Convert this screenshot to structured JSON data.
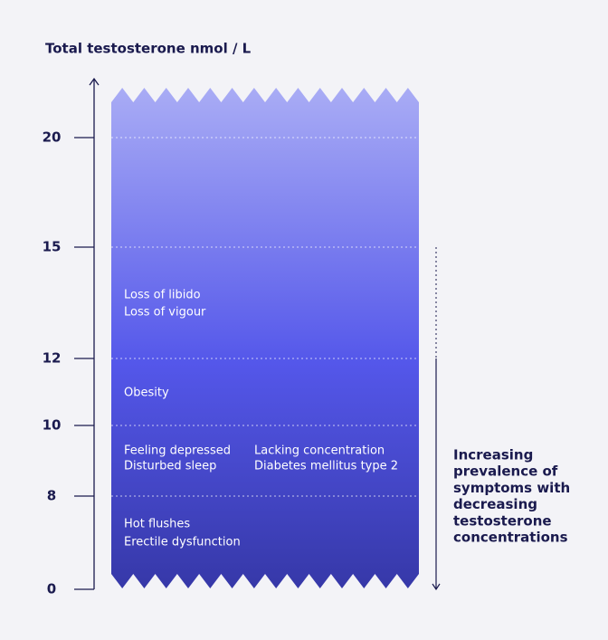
{
  "axis": {
    "title": "Total testosterone nmol / L",
    "ticks": [
      "20",
      "15",
      "12",
      "10",
      "8",
      "0"
    ]
  },
  "symptoms": [
    {
      "lines": [
        "Loss of libido",
        "Loss of vigour"
      ]
    },
    {
      "lines": [
        "Obesity"
      ]
    },
    {
      "lines": [
        "Feeling depressed",
        "Disturbed sleep"
      ]
    },
    {
      "lines": [
        "Lacking concentration",
        "Diabetes mellitus type 2"
      ]
    },
    {
      "lines": [
        "Hot flushes",
        "Erectile dysfunction"
      ]
    }
  ],
  "note": {
    "lines": [
      "Increasing",
      "prevalence of",
      "symptoms with",
      "decreasing",
      "testosterone",
      "concentrations"
    ]
  }
}
